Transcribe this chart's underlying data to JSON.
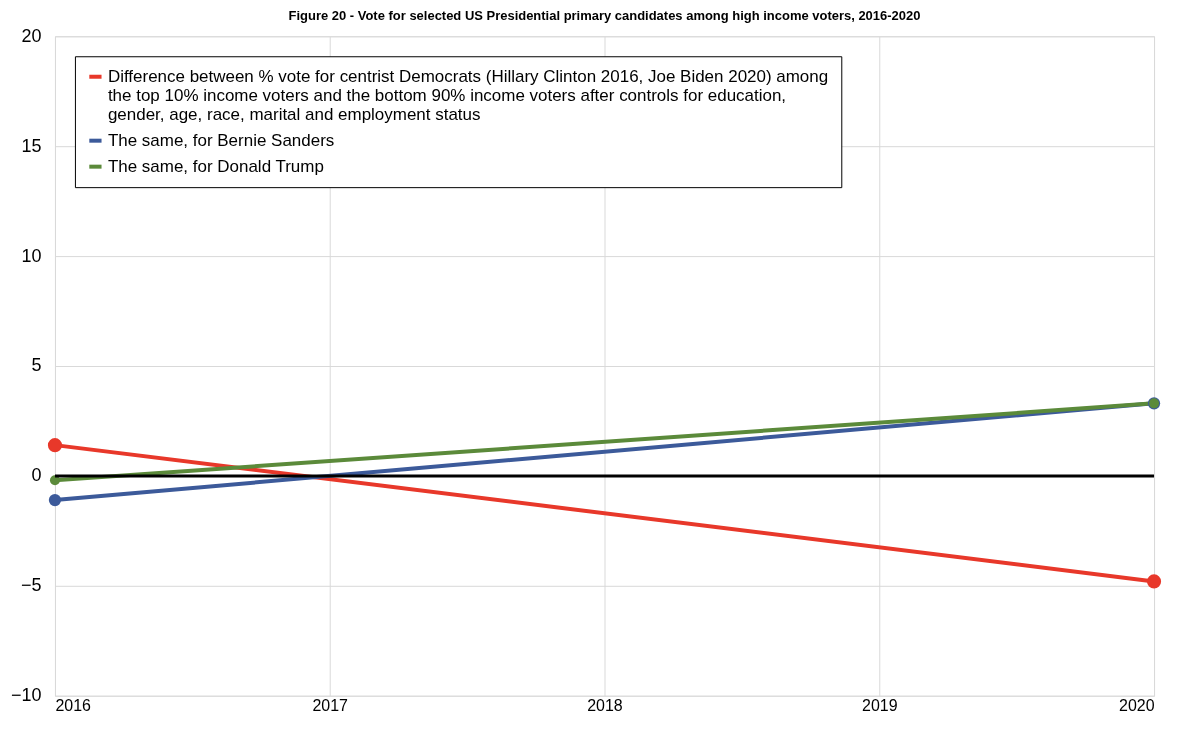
{
  "chart_data": {
    "type": "line",
    "title": "Figure 20 -  Vote for selected US Presidential primary candidates among high income voters, 2016-2020",
    "x": [
      2016,
      2020
    ],
    "xlim": [
      2016,
      2020
    ],
    "xticks": [
      2016,
      2017,
      2018,
      2019,
      2020
    ],
    "ylim": [
      -10,
      20
    ],
    "yticks": [
      -10,
      -5,
      0,
      5,
      10,
      15,
      20
    ],
    "grid": true,
    "legend": "top left",
    "marker": "circle",
    "line_style": "solid",
    "series": [
      {
        "name": "Difference between % vote for centrist Democrats (Hillary Clinton 2016, Joe Biden 2020) among the top 10% income voters and the bottom 90% income voters after controls for education, gender, age, race, marital and employment status",
        "color": "#e8382a",
        "values": [
          1.4,
          -4.8
        ]
      },
      {
        "name": "The same, for Bernie Sanders",
        "color": "#3c5a9a",
        "values": [
          -1.1,
          3.3
        ]
      },
      {
        "name": "The same, for Donald Trump",
        "color": "#5b8a3a",
        "values": [
          -0.2,
          3.3
        ]
      }
    ],
    "ref_lines": [
      {
        "axis": "y",
        "value": 0,
        "color": "#000000"
      }
    ]
  }
}
